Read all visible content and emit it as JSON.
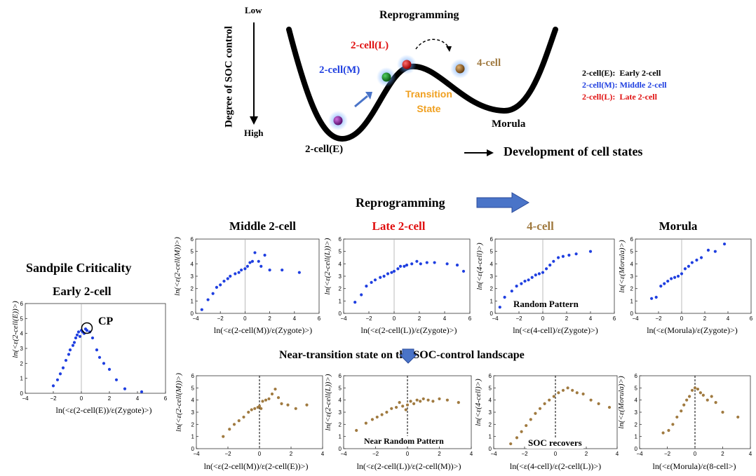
{
  "landscape": {
    "ylabel": "Degree of SOC control",
    "low_label": "Low",
    "high_label": "High",
    "title": "Reprogramming",
    "states": {
      "e": "2-cell(E)",
      "m": "2-cell(M)",
      "l": "2-cell(L)",
      "four": "4-cell",
      "morula": "Morula",
      "transition": [
        "Transition",
        "State"
      ]
    },
    "development_label": "Development of cell states",
    "legend": [
      {
        "key": "2-cell(E):",
        "value": "Early 2-cell",
        "color": "#000000"
      },
      {
        "key": "2-cell(M):",
        "value": "Middle 2-cell",
        "color": "#1f3fe0"
      },
      {
        "key": "2-cell(L):",
        "value": "Late 2-cell",
        "color": "#e01010"
      }
    ]
  },
  "section": {
    "reprogramming": "Reprogramming",
    "near_transition": "Near-transition state on the SOC-control landscape"
  },
  "left_panel": {
    "title": "Sandpile Criticality",
    "subtitle": "Early 2-cell",
    "cp_label": "CP"
  },
  "colors": {
    "blue": "#1f3fe0",
    "red": "#e01010",
    "brown": "#a07a40",
    "orange": "#f0a020",
    "arrow_blue": "#4a74c8"
  },
  "chart_data": [
    {
      "id": "early",
      "type": "scatter",
      "ylabel": "ln(<ε(2-cell(E))>)",
      "xlabel": "ln(<ε(2-cell(E))/ε(Zygote)>)",
      "xlim": [
        -4,
        6
      ],
      "ylim": [
        0,
        6
      ],
      "xticks": [
        -4,
        -2,
        0,
        2,
        4,
        6
      ],
      "yticks": [
        0,
        1,
        2,
        3,
        4,
        5,
        6
      ],
      "vline": "solid",
      "color": "#1f3fe0",
      "points": [
        [
          -2.0,
          0.5
        ],
        [
          -1.7,
          0.9
        ],
        [
          -1.5,
          1.3
        ],
        [
          -1.3,
          1.7
        ],
        [
          -1.1,
          2.2
        ],
        [
          -0.9,
          2.6
        ],
        [
          -0.8,
          2.9
        ],
        [
          -0.6,
          3.2
        ],
        [
          -0.5,
          3.4
        ],
        [
          -0.4,
          3.7
        ],
        [
          -0.3,
          3.9
        ],
        [
          -0.2,
          4.1
        ],
        [
          -0.1,
          3.8
        ],
        [
          0.0,
          4.2
        ],
        [
          0.1,
          4.1
        ],
        [
          0.2,
          4.0
        ],
        [
          0.3,
          4.3
        ],
        [
          0.4,
          4.2
        ],
        [
          0.6,
          4.1
        ],
        [
          0.8,
          3.7
        ],
        [
          1.1,
          2.9
        ],
        [
          1.3,
          2.4
        ],
        [
          1.6,
          2.0
        ],
        [
          2.0,
          1.6
        ],
        [
          2.5,
          0.9
        ],
        [
          3.1,
          0.3
        ],
        [
          4.3,
          0.1
        ]
      ]
    },
    {
      "id": "middle",
      "type": "scatter",
      "title": "Middle 2-cell",
      "title_color": "#1f3fe0",
      "ylabel": "ln(<ε(2-cell(M))>)",
      "xlabel": "ln(<ε(2-cell(M))/ε(Zygote)>)",
      "xlim": [
        -4,
        6
      ],
      "ylim": [
        0,
        6
      ],
      "xticks": [
        -4,
        -2,
        0,
        2,
        4,
        6
      ],
      "yticks": [
        0,
        1,
        2,
        3,
        4,
        5,
        6
      ],
      "vline": "solid",
      "color": "#1f3fe0",
      "points": [
        [
          -3.5,
          0.3
        ],
        [
          -3.0,
          1.1
        ],
        [
          -2.6,
          1.6
        ],
        [
          -2.3,
          2.1
        ],
        [
          -2.0,
          2.3
        ],
        [
          -1.7,
          2.6
        ],
        [
          -1.4,
          2.8
        ],
        [
          -1.2,
          3.0
        ],
        [
          -0.8,
          3.2
        ],
        [
          -0.5,
          3.3
        ],
        [
          -0.3,
          3.5
        ],
        [
          0.0,
          3.6
        ],
        [
          0.2,
          3.8
        ],
        [
          0.4,
          4.1
        ],
        [
          0.6,
          4.2
        ],
        [
          0.8,
          4.9
        ],
        [
          1.1,
          4.2
        ],
        [
          1.3,
          3.8
        ],
        [
          1.6,
          4.7
        ],
        [
          2.0,
          3.5
        ],
        [
          3.0,
          3.5
        ],
        [
          4.4,
          3.3
        ]
      ]
    },
    {
      "id": "late",
      "type": "scatter",
      "title": "Late 2-cell",
      "title_color": "#e01010",
      "ylabel": "ln(<ε(2-cell(L))>)",
      "xlabel": "ln(<ε(2-cell(L))/ε(Zygote)>)",
      "xlim": [
        -4,
        6
      ],
      "ylim": [
        0,
        6
      ],
      "xticks": [
        -4,
        -2,
        0,
        2,
        4,
        6
      ],
      "yticks": [
        0,
        1,
        2,
        3,
        4,
        5,
        6
      ],
      "vline": "solid",
      "color": "#1f3fe0",
      "points": [
        [
          -3.1,
          0.9
        ],
        [
          -2.6,
          1.5
        ],
        [
          -2.2,
          2.2
        ],
        [
          -1.8,
          2.5
        ],
        [
          -1.5,
          2.7
        ],
        [
          -1.1,
          2.9
        ],
        [
          -0.8,
          3.0
        ],
        [
          -0.5,
          3.2
        ],
        [
          -0.2,
          3.3
        ],
        [
          0.0,
          3.4
        ],
        [
          0.3,
          3.6
        ],
        [
          0.5,
          3.8
        ],
        [
          0.8,
          3.8
        ],
        [
          1.0,
          3.9
        ],
        [
          1.4,
          4.0
        ],
        [
          1.8,
          4.2
        ],
        [
          2.1,
          4.0
        ],
        [
          2.6,
          4.1
        ],
        [
          3.2,
          4.1
        ],
        [
          4.2,
          4.0
        ],
        [
          5.0,
          3.9
        ],
        [
          5.5,
          3.4
        ]
      ]
    },
    {
      "id": "four",
      "type": "scatter",
      "title": "4-cell",
      "title_color": "#a07a40",
      "ylabel": "ln(<ε(4-cell)>)",
      "xlabel": "ln(<ε(4-cell)/ε(Zygote)>)",
      "annotation": "Random Pattern",
      "xlim": [
        -4,
        6
      ],
      "ylim": [
        0,
        6
      ],
      "xticks": [
        -4,
        -2,
        0,
        2,
        4,
        6
      ],
      "yticks": [
        0,
        1,
        2,
        3,
        4,
        5,
        6
      ],
      "vline": "solid",
      "color": "#1f3fe0",
      "points": [
        [
          -3.6,
          0.5
        ],
        [
          -3.2,
          1.3
        ],
        [
          -2.6,
          1.8
        ],
        [
          -2.2,
          2.2
        ],
        [
          -1.8,
          2.4
        ],
        [
          -1.5,
          2.6
        ],
        [
          -1.2,
          2.7
        ],
        [
          -0.9,
          2.9
        ],
        [
          -0.6,
          3.1
        ],
        [
          -0.3,
          3.2
        ],
        [
          0.0,
          3.3
        ],
        [
          0.3,
          3.6
        ],
        [
          0.6,
          3.9
        ],
        [
          0.9,
          4.2
        ],
        [
          1.3,
          4.5
        ],
        [
          1.7,
          4.6
        ],
        [
          2.2,
          4.7
        ],
        [
          2.8,
          4.8
        ],
        [
          4.0,
          5.0
        ]
      ]
    },
    {
      "id": "morula",
      "type": "scatter",
      "title": "Morula",
      "title_color": "#000000",
      "ylabel": "ln(<ε(Morula)>)",
      "xlabel": "ln(<ε(Morula)/ε(Zygote)>)",
      "xlim": [
        -4,
        6
      ],
      "ylim": [
        0,
        6
      ],
      "xticks": [
        -4,
        -2,
        0,
        2,
        4,
        6
      ],
      "yticks": [
        0,
        1,
        2,
        3,
        4,
        5,
        6
      ],
      "vline": "solid",
      "color": "#1f3fe0",
      "points": [
        [
          -2.6,
          1.2
        ],
        [
          -2.2,
          1.3
        ],
        [
          -1.8,
          2.2
        ],
        [
          -1.5,
          2.4
        ],
        [
          -1.2,
          2.6
        ],
        [
          -0.9,
          2.8
        ],
        [
          -0.6,
          2.9
        ],
        [
          -0.3,
          3.0
        ],
        [
          0.0,
          3.2
        ],
        [
          0.3,
          3.6
        ],
        [
          0.6,
          3.8
        ],
        [
          0.9,
          4.1
        ],
        [
          1.3,
          4.3
        ],
        [
          1.7,
          4.5
        ],
        [
          2.3,
          5.1
        ],
        [
          2.9,
          5.0
        ],
        [
          3.7,
          5.6
        ]
      ]
    },
    {
      "id": "m_vs_e",
      "type": "scatter",
      "ylabel": "ln(<ε(2-cell(M))>)",
      "xlabel": "ln(<ε(2-cell(M))/ε(2-cell(E))>)",
      "xlim": [
        -4,
        4
      ],
      "ylim": [
        0,
        6
      ],
      "xticks": [
        -4,
        -2,
        0,
        2,
        4
      ],
      "yticks": [
        0,
        1,
        2,
        3,
        4,
        5,
        6
      ],
      "vline": "dashed",
      "color": "#a07a40",
      "points": [
        [
          -2.3,
          1.0
        ],
        [
          -1.9,
          1.6
        ],
        [
          -1.6,
          2.0
        ],
        [
          -1.3,
          2.3
        ],
        [
          -1.0,
          2.6
        ],
        [
          -0.7,
          3.0
        ],
        [
          -0.5,
          3.2
        ],
        [
          -0.3,
          3.3
        ],
        [
          -0.1,
          3.4
        ],
        [
          0.0,
          3.5
        ],
        [
          0.1,
          3.3
        ],
        [
          0.2,
          3.9
        ],
        [
          0.4,
          4.0
        ],
        [
          0.6,
          4.1
        ],
        [
          0.8,
          4.5
        ],
        [
          1.0,
          4.9
        ],
        [
          1.2,
          4.2
        ],
        [
          1.4,
          3.7
        ],
        [
          1.8,
          3.6
        ],
        [
          2.3,
          3.3
        ],
        [
          3.0,
          3.6
        ]
      ]
    },
    {
      "id": "l_vs_m",
      "type": "scatter",
      "ylabel": "ln(<ε(2-cell(L))>)",
      "xlabel": "ln(<ε(2-cell(L))/ε(2-cell(M))>)",
      "annotation": "Near Random Pattern",
      "xlim": [
        -4,
        4
      ],
      "ylim": [
        0,
        6
      ],
      "xticks": [
        -4,
        -2,
        0,
        2,
        4
      ],
      "yticks": [
        0,
        1,
        2,
        3,
        4,
        5,
        6
      ],
      "vline": "dashed",
      "color": "#a07a40",
      "points": [
        [
          -3.2,
          1.5
        ],
        [
          -2.6,
          2.1
        ],
        [
          -2.2,
          2.4
        ],
        [
          -1.9,
          2.6
        ],
        [
          -1.6,
          2.8
        ],
        [
          -1.3,
          3.0
        ],
        [
          -1.0,
          3.3
        ],
        [
          -0.7,
          3.4
        ],
        [
          -0.5,
          3.8
        ],
        [
          -0.3,
          3.5
        ],
        [
          -0.1,
          3.2
        ],
        [
          0.0,
          3.6
        ],
        [
          0.2,
          3.9
        ],
        [
          0.4,
          3.7
        ],
        [
          0.6,
          4.0
        ],
        [
          0.8,
          3.9
        ],
        [
          1.0,
          4.1
        ],
        [
          1.3,
          4.0
        ],
        [
          1.6,
          3.9
        ],
        [
          2.0,
          4.1
        ],
        [
          2.5,
          4.0
        ],
        [
          3.2,
          3.8
        ]
      ]
    },
    {
      "id": "four_vs_l",
      "type": "scatter",
      "ylabel": "ln(<ε(4-cell)>)",
      "xlabel": "ln(<ε(4-cell)/ε(2-cell(L))>)",
      "annotation": "SOC recovers",
      "xlim": [
        -4,
        4
      ],
      "ylim": [
        0,
        6
      ],
      "xticks": [
        -4,
        -2,
        0,
        2,
        4
      ],
      "yticks": [
        0,
        1,
        2,
        3,
        4,
        5,
        6
      ],
      "vline": "dashed",
      "color": "#a07a40",
      "points": [
        [
          -2.9,
          0.4
        ],
        [
          -2.5,
          0.9
        ],
        [
          -2.2,
          1.4
        ],
        [
          -1.9,
          1.9
        ],
        [
          -1.6,
          2.4
        ],
        [
          -1.3,
          2.9
        ],
        [
          -1.0,
          3.3
        ],
        [
          -0.7,
          3.7
        ],
        [
          -0.4,
          4.0
        ],
        [
          -0.1,
          4.3
        ],
        [
          0.2,
          4.6
        ],
        [
          0.5,
          4.8
        ],
        [
          0.8,
          5.0
        ],
        [
          1.1,
          4.8
        ],
        [
          1.4,
          4.6
        ],
        [
          1.8,
          4.5
        ],
        [
          2.3,
          4.0
        ],
        [
          2.8,
          3.7
        ],
        [
          3.5,
          3.4
        ]
      ]
    },
    {
      "id": "morula_vs_8",
      "type": "scatter",
      "ylabel": "ln(<ε(Morula)>)",
      "xlabel": "ln(<ε(Morula)/ε(8-cell>)",
      "xlim": [
        -4,
        4
      ],
      "ylim": [
        0,
        6
      ],
      "xticks": [
        -4,
        -2,
        0,
        2,
        4
      ],
      "yticks": [
        0,
        1,
        2,
        3,
        4,
        5,
        6
      ],
      "vline": "dashed",
      "color": "#a07a40",
      "points": [
        [
          -2.3,
          1.3
        ],
        [
          -1.9,
          1.5
        ],
        [
          -1.6,
          2.0
        ],
        [
          -1.3,
          2.6
        ],
        [
          -1.0,
          3.1
        ],
        [
          -0.8,
          3.6
        ],
        [
          -0.6,
          4.0
        ],
        [
          -0.4,
          4.3
        ],
        [
          -0.2,
          4.8
        ],
        [
          0.0,
          5.0
        ],
        [
          0.2,
          4.9
        ],
        [
          0.4,
          4.6
        ],
        [
          0.6,
          4.4
        ],
        [
          0.9,
          4.0
        ],
        [
          1.2,
          4.3
        ],
        [
          1.5,
          3.8
        ],
        [
          2.0,
          3.0
        ],
        [
          3.1,
          2.6
        ]
      ]
    }
  ]
}
